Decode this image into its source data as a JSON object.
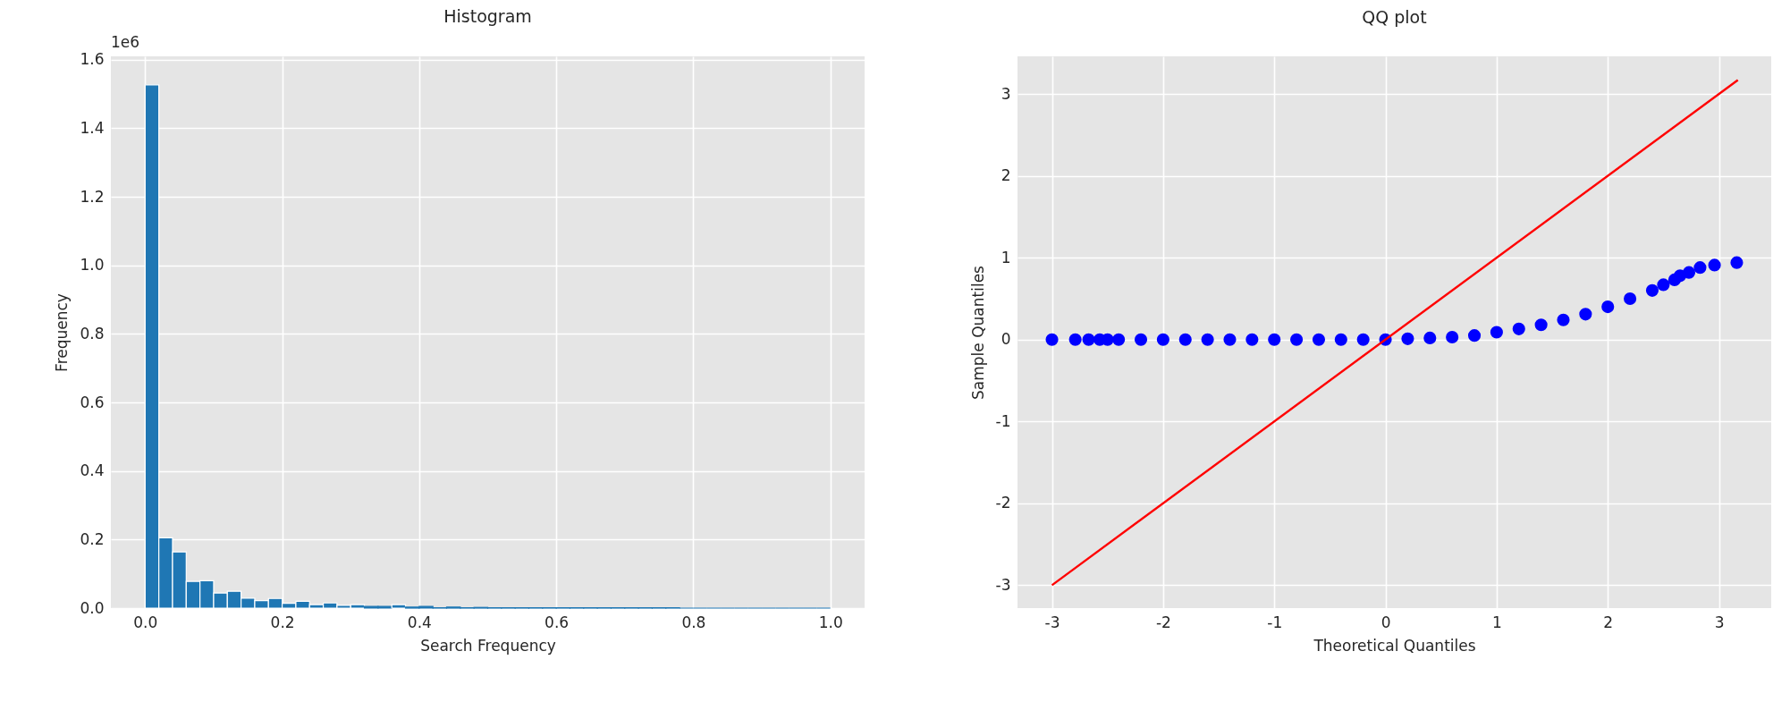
{
  "chart_data": [
    {
      "type": "histogram",
      "title": "Histogram",
      "xlabel": "Search Frequency",
      "ylabel": "Frequency",
      "color": "#1f77b4",
      "grid": true,
      "annotations": [
        "1e6"
      ],
      "bins": [
        0,
        0.02,
        0.04,
        0.06,
        0.08,
        0.1,
        0.12,
        0.14,
        0.16,
        0.18,
        0.2,
        0.22,
        0.24,
        0.26,
        0.28,
        0.3,
        0.32,
        0.34,
        0.36,
        0.38,
        0.4,
        0.42,
        0.44,
        0.46,
        0.48,
        0.5,
        0.52,
        0.54,
        0.56,
        0.58,
        0.6,
        0.62,
        0.64,
        0.66,
        0.68,
        0.7,
        0.72,
        0.74,
        0.76,
        0.78,
        0.8,
        0.82,
        0.84,
        0.86,
        0.88,
        0.9,
        0.92,
        0.94,
        0.96,
        0.98,
        1
      ],
      "values": [
        1.527,
        0.205,
        0.164,
        0.078,
        0.08,
        0.044,
        0.049,
        0.029,
        0.022,
        0.028,
        0.014,
        0.02,
        0.01,
        0.015,
        0.008,
        0.01,
        0.005,
        0.005,
        0.01,
        0.003,
        0.005,
        0.001,
        0.003,
        0.001,
        0.002,
        0.001,
        0.001,
        0.001,
        0.001,
        0.001,
        0.001,
        0.001,
        0.001,
        0.001,
        0.001,
        0.001,
        0.001,
        0.001,
        0.001,
        0,
        0,
        0,
        0,
        0,
        0,
        0,
        0,
        0,
        0,
        0
      ],
      "xlim": [
        -0.05,
        1.05
      ],
      "xticks": [
        {
          "value": 0,
          "label": "0.0"
        },
        {
          "value": 0.2,
          "label": "0.2"
        },
        {
          "value": 0.4,
          "label": "0.4"
        },
        {
          "value": 0.6,
          "label": "0.6"
        },
        {
          "value": 0.8,
          "label": "0.8"
        },
        {
          "value": 1,
          "label": "1.0"
        }
      ],
      "ylim": [
        0,
        1.61
      ],
      "yticks": [
        {
          "value": 0,
          "label": "0.0"
        },
        {
          "value": 0.2,
          "label": "0.2"
        },
        {
          "value": 0.4,
          "label": "0.4"
        },
        {
          "value": 0.6,
          "label": "0.6"
        },
        {
          "value": 0.8,
          "label": "0.8"
        },
        {
          "value": 1,
          "label": "1.0"
        },
        {
          "value": 1.2,
          "label": "1.2"
        },
        {
          "value": 1.4,
          "label": "1.4"
        },
        {
          "value": 1.6,
          "label": "1.6"
        }
      ]
    },
    {
      "type": "scatter",
      "title": "QQ plot",
      "xlabel": "Theoretical Quantiles",
      "ylabel": "Sample Quantiles",
      "grid": true,
      "series": [
        {
          "type": "scatter",
          "color": "#0000ff",
          "marker": "circle",
          "x": [
            -3.0,
            -2.79,
            -2.67,
            -2.57,
            -2.5,
            -2.4,
            -2.2,
            -2.0,
            -1.8,
            -1.6,
            -1.4,
            -1.2,
            -1.0,
            -0.8,
            -0.6,
            -0.4,
            -0.2,
            0,
            0.2,
            0.4,
            0.6,
            0.8,
            1.0,
            1.2,
            1.4,
            1.6,
            1.8,
            2.0,
            2.2,
            2.4,
            2.5,
            2.6,
            2.65,
            2.73,
            2.83,
            2.96,
            3.16
          ],
          "values": [
            0,
            0,
            0,
            0,
            0,
            0,
            0,
            0,
            0,
            0,
            0,
            0,
            0,
            0,
            0,
            0,
            0,
            0,
            0.01,
            0.02,
            0.03,
            0.05,
            0.09,
            0.13,
            0.18,
            0.24,
            0.31,
            0.4,
            0.5,
            0.6,
            0.67,
            0.73,
            0.78,
            0.82,
            0.88,
            0.91,
            0.94
          ]
        },
        {
          "type": "line",
          "color": "#ff0000",
          "x": [
            -3.0,
            3.17
          ],
          "values": [
            -3.0,
            3.17
          ]
        }
      ],
      "xlim": [
        -3.31,
        3.47
      ],
      "xticks": [
        -3,
        -2,
        -1,
        0,
        1,
        2,
        3
      ],
      "ylim": [
        -3.28,
        3.46
      ],
      "yticks": [
        -3,
        -2,
        -1,
        0,
        1,
        2,
        3
      ]
    }
  ]
}
